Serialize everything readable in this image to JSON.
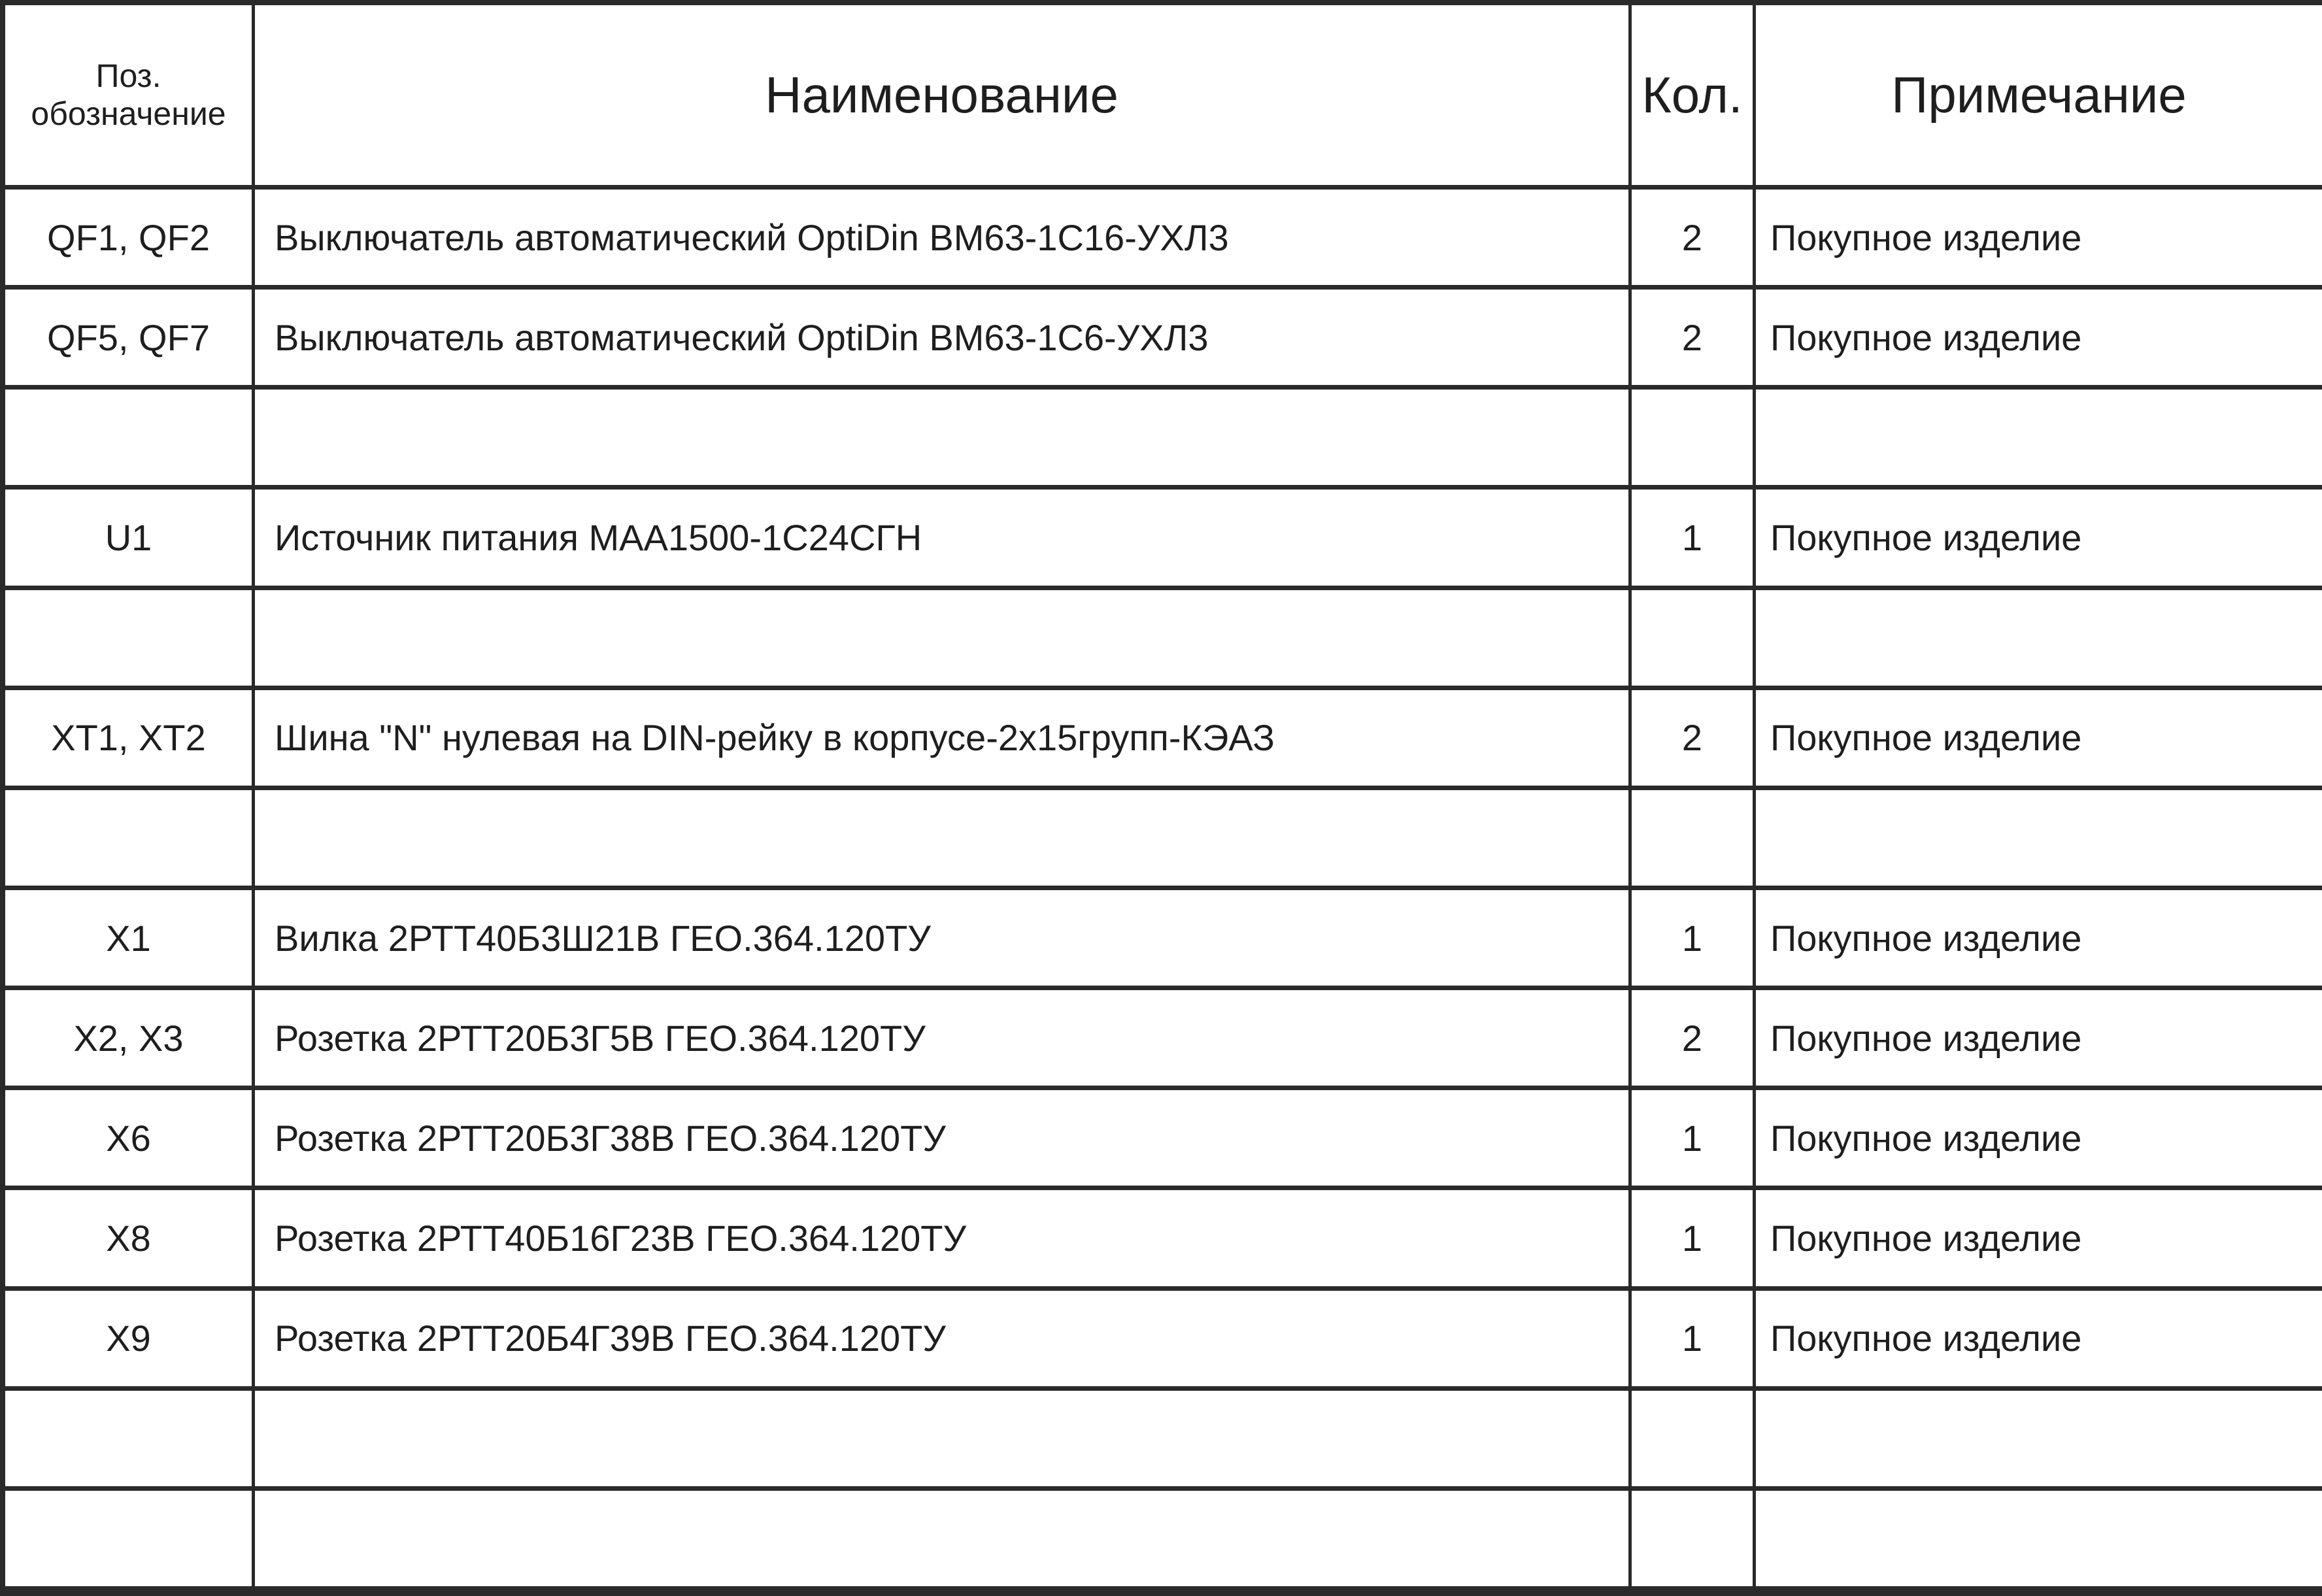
{
  "header": {
    "pos_line1": "Поз.",
    "pos_line2": "обозначение",
    "name": "Наименование",
    "qty": "Кол.",
    "note": "Примечание"
  },
  "rows": [
    {
      "pos": "QF1, QF2",
      "name": "Выключатель автоматический OptiDin ВМ63-1С16-УХЛ3",
      "qty": "2",
      "note": "Покупное изделие"
    },
    {
      "pos": "QF5, QF7",
      "name": "Выключатель автоматический OptiDin ВМ63-1С6-УХЛ3",
      "qty": "2",
      "note": "Покупное изделие"
    },
    {
      "pos": "",
      "name": "",
      "qty": "",
      "note": ""
    },
    {
      "pos": "U1",
      "name": "Источник питания MAA1500-1С24СГН",
      "qty": "1",
      "note": "Покупное изделие"
    },
    {
      "pos": "",
      "name": "",
      "qty": "",
      "note": ""
    },
    {
      "pos": "XT1, XT2",
      "name": "Шина \"N\" нулевая на DIN-рейку в корпусе-2х15групп-КЭАЗ",
      "qty": "2",
      "note": "Покупное изделие"
    },
    {
      "pos": "",
      "name": "",
      "qty": "",
      "note": ""
    },
    {
      "pos": "X1",
      "name": "Вилка 2РТТ40Б3Ш21В ГЕО.364.120ТУ",
      "qty": "1",
      "note": "Покупное изделие"
    },
    {
      "pos": "X2, X3",
      "name": "Розетка 2РТТ20Б3Г5В ГЕО.364.120ТУ",
      "qty": "2",
      "note": "Покупное изделие"
    },
    {
      "pos": "X6",
      "name": "Розетка 2РТТ20Б3Г38В ГЕО.364.120ТУ",
      "qty": "1",
      "note": "Покупное изделие"
    },
    {
      "pos": "X8",
      "name": "Розетка 2РТТ40Б16Г23В ГЕО.364.120ТУ",
      "qty": "1",
      "note": "Покупное изделие"
    },
    {
      "pos": "X9",
      "name": "Розетка 2РТТ20Б4Г39В ГЕО.364.120ТУ",
      "qty": "1",
      "note": "Покупное изделие"
    },
    {
      "pos": "",
      "name": "",
      "qty": "",
      "note": ""
    },
    {
      "pos": "",
      "name": "",
      "qty": "",
      "note": ""
    }
  ]
}
